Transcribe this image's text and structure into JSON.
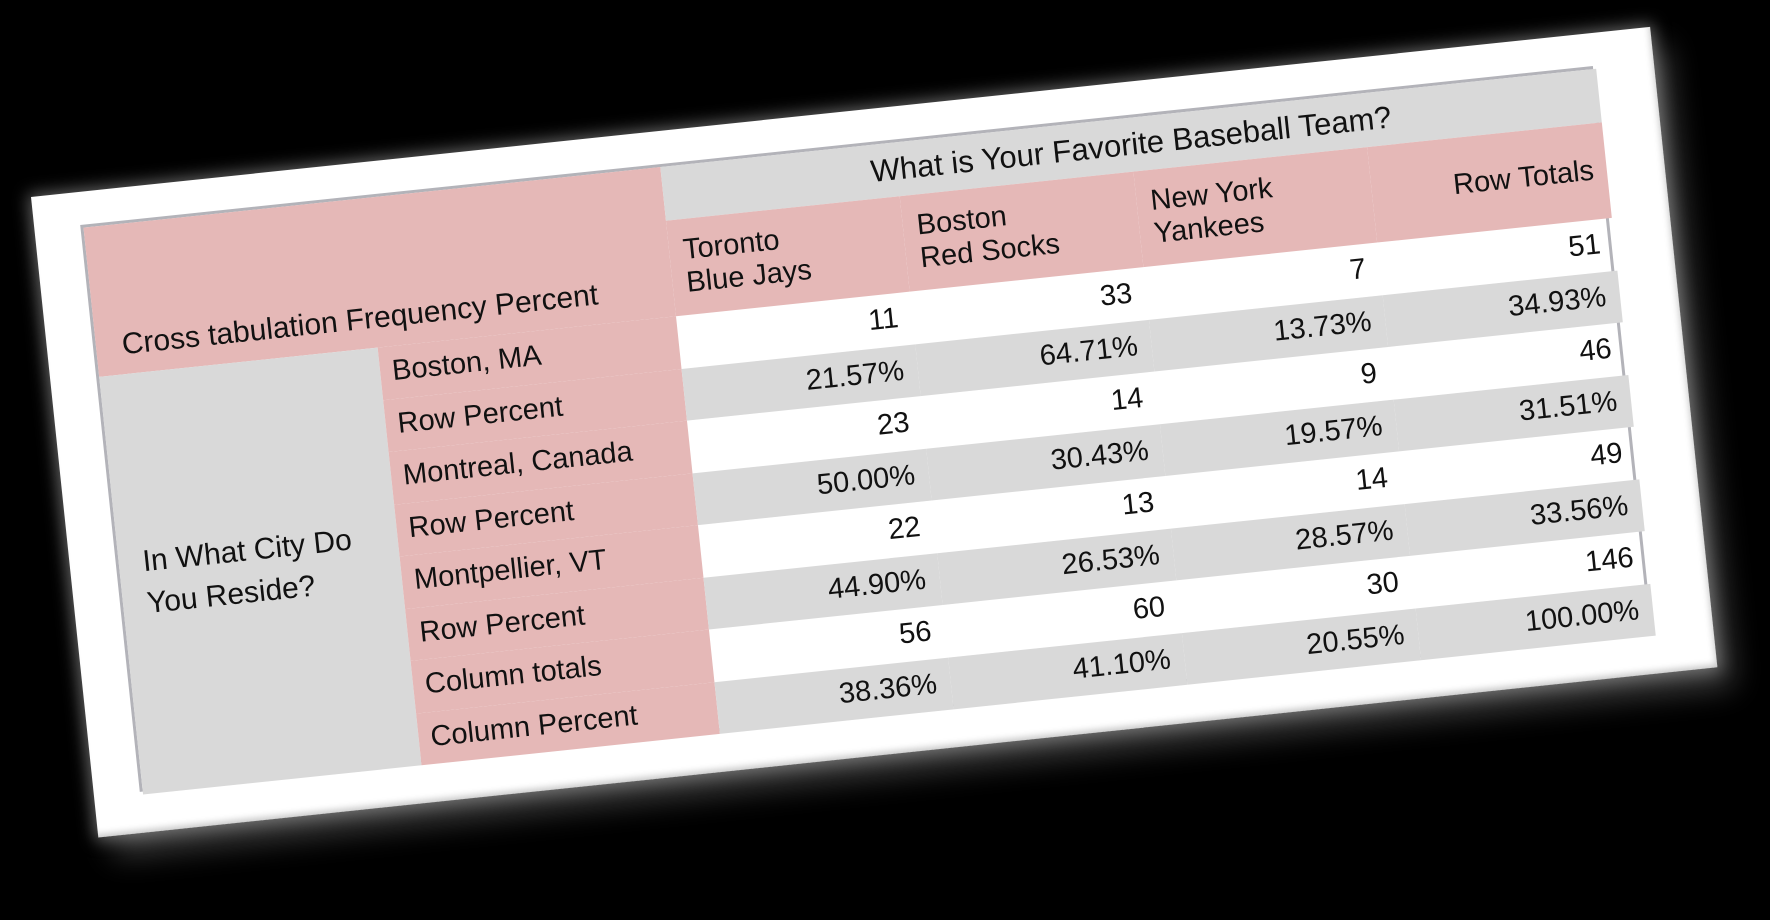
{
  "colors": {
    "background": "#000000",
    "card": "#ffffff",
    "pink_accent": "#e5b8b7",
    "gray_band": "#d9d9d9",
    "table_border": "#b3b3b9",
    "text": "#111111"
  },
  "chart_data": {
    "type": "table",
    "title": "What is Your Favorite Baseball Team?",
    "corner_label": "Cross tabulation Frequency Percent",
    "row_question": "In What City Do You Reside?",
    "row_question_lines": [
      "In What City Do",
      "You Reside?"
    ],
    "columns": [
      "Toronto Blue Jays",
      "Boston Red Socks",
      "New York Yankees",
      "Row Totals"
    ],
    "header_lines": [
      [
        "Toronto",
        "Blue Jays"
      ],
      [
        "Boston",
        "Red Socks"
      ],
      [
        "New York",
        "Yankees"
      ],
      [
        "Row Totals"
      ]
    ],
    "rows": [
      {
        "label": "Boston, MA",
        "values": [
          "11",
          "33",
          "7",
          "51"
        ]
      },
      {
        "label": "Row Percent",
        "values": [
          "21.57%",
          "64.71%",
          "13.73%",
          "34.93%"
        ]
      },
      {
        "label": "Montreal, Canada",
        "values": [
          "23",
          "14",
          "9",
          "46"
        ]
      },
      {
        "label": "Row Percent",
        "values": [
          "50.00%",
          "30.43%",
          "19.57%",
          "31.51%"
        ]
      },
      {
        "label": "Montpellier, VT",
        "values": [
          "22",
          "13",
          "14",
          "49"
        ]
      },
      {
        "label": "Row Percent",
        "values": [
          "44.90%",
          "26.53%",
          "28.57%",
          "33.56%"
        ]
      },
      {
        "label": "Column totals",
        "values": [
          "56",
          "60",
          "30",
          "146"
        ]
      },
      {
        "label": "Column Percent",
        "values": [
          "38.36%",
          "41.10%",
          "20.55%",
          "100.00%"
        ]
      }
    ]
  }
}
